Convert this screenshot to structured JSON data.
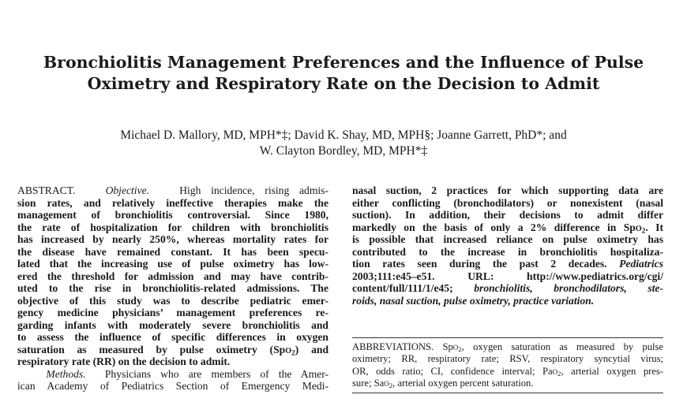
{
  "article": {
    "title_lines": [
      "Bronchiolitis Management Preferences and the Influence of Pulse",
      "Oximetry and Respiratory Rate on the Decision to Admit"
    ],
    "author_lines": [
      "Michael D. Mallory, MD, MPH*‡; David K. Shay, MD, MPH§; Joanne Garrett, PhD*; and",
      "W. Clayton Bordley, MD, MPH*‡"
    ]
  },
  "abstract": {
    "left_lines": [
      {
        "lead": "ABSTRACT.",
        "lead2": "Objective.",
        "text": "High incidence, rising admis-"
      },
      {
        "text": "sion rates, and relatively ineffective therapies make the"
      },
      {
        "text": "management of bronchiolitis controversial. Since 1980,"
      },
      {
        "text": "the rate of hospitalization for children with bronchiolitis"
      },
      {
        "text": "has increased by nearly 250%, whereas mortality rates for"
      },
      {
        "text": "the disease have remained constant. It has been specu-"
      },
      {
        "text": "lated that the increasing use of pulse oximetry has low-"
      },
      {
        "text": "ered the threshold for admission and may have contrib-"
      },
      {
        "text": "uted to the rise in bronchiolitis-related admissions. The"
      },
      {
        "text": "objective of this study was to describe pediatric emer-"
      },
      {
        "text": "gency medicine physicians’ management preferences re-"
      },
      {
        "text": "garding infants with moderately severe bronchiolitis and"
      },
      {
        "text": "to assess the influence of specific differences in oxygen"
      },
      {
        "text": "saturation as measured by pulse oximetry (Spo2) and"
      },
      {
        "text": "respiratory rate (RR) on the decision to admit."
      },
      {
        "lead2": "Methods.",
        "text": "Physicians who are members of the Amer-"
      },
      {
        "text": "ican Academy of Pediatrics Section of Emergency Medi-"
      }
    ],
    "right_lines": [
      {
        "text": "nasal suction, 2 practices for which supporting data are"
      },
      {
        "text": "either conflicting (bronchodilators) or nonexistent (nasal"
      },
      {
        "text": "suction). In addition, their decisions to admit differ"
      },
      {
        "text": "markedly on the basis of only a 2% difference in Spo2. It"
      },
      {
        "text": "is possible that increased reliance on pulse oximetry has"
      },
      {
        "text": "contributed to the increase in bronchiolitis hospitaliza-"
      },
      {
        "text": "tion rates seen during the past 2 decades.",
        "italic": "Pediatrics"
      },
      {
        "text": "2003;111:e45–e51. URL: http://www.pediatrics.org/cgi/"
      },
      {
        "text": "content/full/111/1/e45;",
        "italic": "bronchiolitis, bronchodilators, ste-"
      },
      {
        "italic": "roids, nasal suction, pulse oximetry, practice variation."
      }
    ]
  },
  "abbreviations": {
    "lines": [
      "ABBREVIATIONS. Spo2, oxygen saturation as measured by pulse",
      "oximetry; RR, respiratory rate; RSV, respiratory syncytial virus;",
      "OR, odds ratio; CI, confidence interval; Pao2, arterial oxygen pres-",
      "sure; Sao2, arterial oxygen percent saturation."
    ]
  }
}
